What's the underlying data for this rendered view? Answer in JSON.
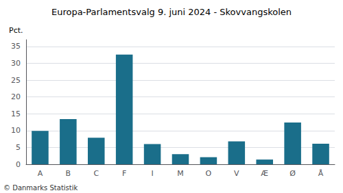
{
  "chart_data": {
    "type": "bar",
    "title": "Europa-Parlamentsvalg 9. juni 2024 - Skovvangskolen",
    "ylabel": "Pct.",
    "annotations": [
      "© Danmarks Statistik"
    ],
    "categories": [
      "A",
      "B",
      "C",
      "F",
      "I",
      "M",
      "O",
      "V",
      "Æ",
      "Ø",
      "Å"
    ],
    "values": [
      9.9,
      13.4,
      7.9,
      32.6,
      6.0,
      3.0,
      2.1,
      6.8,
      1.4,
      12.4,
      6.1
    ],
    "color": "#1a6e8a",
    "ylim": [
      0,
      37
    ],
    "yticks": [
      0,
      5,
      10,
      15,
      20,
      25,
      30,
      35
    ],
    "grid": true
  }
}
